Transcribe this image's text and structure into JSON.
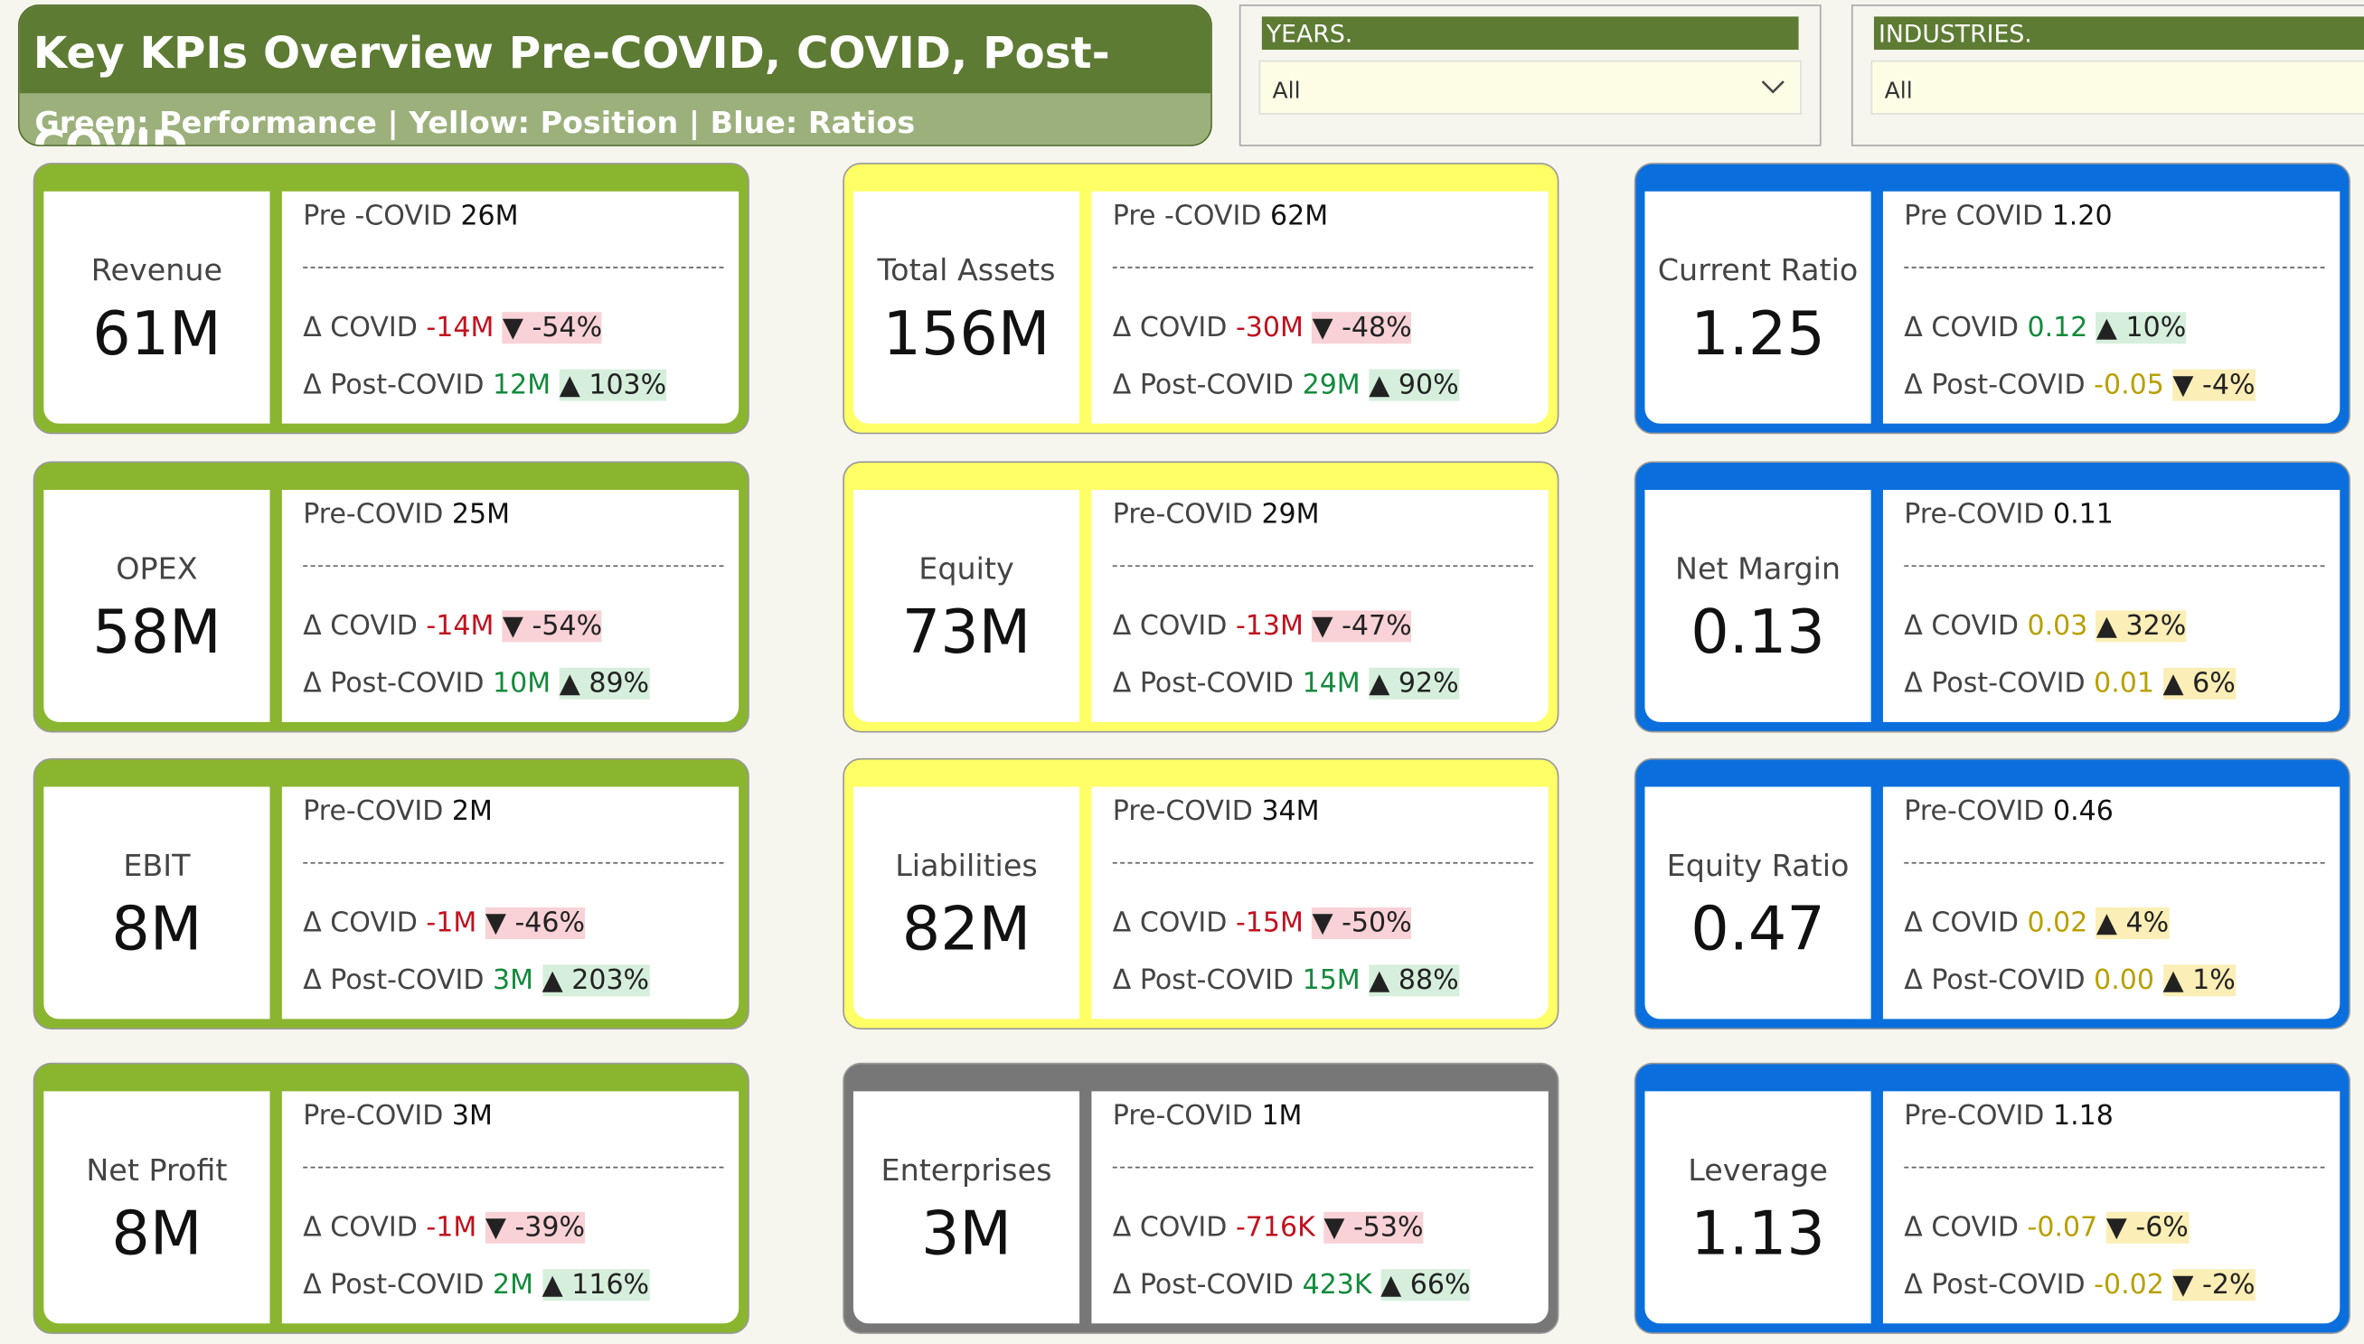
{
  "header": {
    "title": "Key KPIs Overview Pre-COVID, COVID, Post-COVID",
    "subtitle": "Green: Performance | Yellow: Position | Blue: Ratios"
  },
  "filters": [
    {
      "label": "YEARS.",
      "value": "All"
    },
    {
      "label": "INDUSTRIES.",
      "value": "All"
    }
  ],
  "cards": [
    {
      "theme": "green",
      "name": "Revenue",
      "value": "61M",
      "pre_label": "Pre -COVID",
      "pre_value": "26M",
      "covid_label": "Δ COVID",
      "covid_delta": "-14M",
      "covid_pct": "▼ -54%",
      "covid_tone": "neg",
      "post_label": "Δ Post-COVID",
      "post_delta": "12M",
      "post_pct": "▲ 103%",
      "post_tone": "pos"
    },
    {
      "theme": "yellow",
      "name": "Total Assets",
      "value": "156M",
      "pre_label": "Pre -COVID",
      "pre_value": "62M",
      "covid_label": "Δ COVID",
      "covid_delta": "-30M",
      "covid_pct": "▼ -48%",
      "covid_tone": "neg",
      "post_label": "Δ Post-COVID",
      "post_delta": "29M",
      "post_pct": "▲ 90%",
      "post_tone": "pos"
    },
    {
      "theme": "blue",
      "name": "Current Ratio",
      "value": "1.25",
      "pre_label": "Pre COVID",
      "pre_value": "1.20",
      "covid_label": "Δ COVID",
      "covid_delta": "0.12",
      "covid_pct": "▲ 10%",
      "covid_tone": "pos",
      "post_label": "Δ Post-COVID",
      "post_delta": "-0.05",
      "post_pct": "▼ -4%",
      "post_tone": "ratio"
    },
    {
      "theme": "green",
      "name": "OPEX",
      "value": "58M",
      "pre_label": "Pre-COVID",
      "pre_value": "25M",
      "covid_label": "Δ COVID",
      "covid_delta": "-14M",
      "covid_pct": "▼ -54%",
      "covid_tone": "neg",
      "post_label": "Δ Post-COVID",
      "post_delta": "10M",
      "post_pct": "▲ 89%",
      "post_tone": "pos"
    },
    {
      "theme": "yellow",
      "name": "Equity",
      "value": "73M",
      "pre_label": "Pre-COVID",
      "pre_value": "29M",
      "covid_label": "Δ COVID",
      "covid_delta": "-13M",
      "covid_pct": "▼ -47%",
      "covid_tone": "neg",
      "post_label": "Δ Post-COVID",
      "post_delta": "14M",
      "post_pct": "▲ 92%",
      "post_tone": "pos"
    },
    {
      "theme": "blue",
      "name": "Net Margin",
      "value": "0.13",
      "pre_label": "Pre-COVID",
      "pre_value": "0.11",
      "covid_label": "Δ COVID",
      "covid_delta": "0.03",
      "covid_pct": "▲ 32%",
      "covid_tone": "ratio",
      "post_label": "Δ Post-COVID",
      "post_delta": "0.01",
      "post_pct": "▲ 6%",
      "post_tone": "ratio"
    },
    {
      "theme": "green",
      "name": "EBIT",
      "value": "8M",
      "pre_label": "Pre-COVID",
      "pre_value": "2M",
      "covid_label": "Δ COVID",
      "covid_delta": "-1M",
      "covid_pct": "▼ -46%",
      "covid_tone": "neg",
      "post_label": "Δ Post-COVID",
      "post_delta": "3M",
      "post_pct": "▲ 203%",
      "post_tone": "pos"
    },
    {
      "theme": "yellow",
      "name": "Liabilities",
      "value": "82M",
      "pre_label": "Pre-COVID",
      "pre_value": "34M",
      "covid_label": "Δ COVID",
      "covid_delta": "-15M",
      "covid_pct": "▼ -50%",
      "covid_tone": "neg",
      "post_label": "Δ Post-COVID",
      "post_delta": "15M",
      "post_pct": "▲ 88%",
      "post_tone": "pos"
    },
    {
      "theme": "blue",
      "name": "Equity Ratio",
      "value": "0.47",
      "pre_label": "Pre-COVID",
      "pre_value": "0.46",
      "covid_label": "Δ COVID",
      "covid_delta": "0.02",
      "covid_pct": "▲ 4%",
      "covid_tone": "ratio",
      "post_label": "Δ Post-COVID",
      "post_delta": "0.00",
      "post_pct": "▲ 1%",
      "post_tone": "ratio"
    },
    {
      "theme": "green",
      "name": "Net Profit",
      "value": "8M",
      "pre_label": "Pre-COVID",
      "pre_value": "3M",
      "covid_label": "Δ COVID",
      "covid_delta": "-1M",
      "covid_pct": "▼ -39%",
      "covid_tone": "neg",
      "post_label": "Δ Post-COVID",
      "post_delta": "2M",
      "post_pct": "▲ 116%",
      "post_tone": "pos"
    },
    {
      "theme": "gray",
      "name": "Enterprises",
      "value": "3M",
      "pre_label": "Pre-COVID",
      "pre_value": "1M",
      "covid_label": "Δ COVID",
      "covid_delta": "-716K",
      "covid_pct": "▼ -53%",
      "covid_tone": "neg",
      "post_label": "Δ Post-COVID",
      "post_delta": "423K",
      "post_pct": "▲ 66%",
      "post_tone": "pos"
    },
    {
      "theme": "blue",
      "name": "Leverage",
      "value": "1.13",
      "pre_label": "Pre-COVID",
      "pre_value": "1.18",
      "covid_label": "Δ COVID",
      "covid_delta": "-0.07",
      "covid_pct": "▼ -6%",
      "covid_tone": "ratio",
      "post_label": "Δ Post-COVID",
      "post_delta": "-0.02",
      "post_pct": "▼ -2%",
      "post_tone": "ratio"
    }
  ]
}
